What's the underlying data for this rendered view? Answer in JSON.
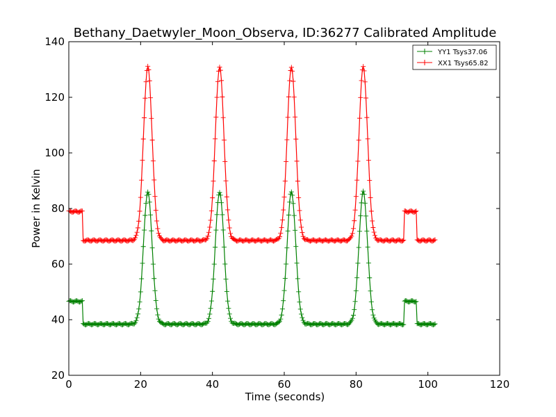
{
  "chart_data": {
    "type": "line",
    "title": "Bethany_Daetwyler_Moon_Observa, ID:36277 Calibrated Amplitude",
    "xlabel": "Time (seconds)",
    "ylabel": "Power in Kelvin",
    "xlim": [
      0,
      120
    ],
    "ylim": [
      20,
      140
    ],
    "x_ticks": [
      0,
      20,
      40,
      60,
      80,
      100,
      120
    ],
    "y_ticks": [
      20,
      40,
      60,
      80,
      100,
      120,
      140
    ],
    "x_tick_labels": [
      "0",
      "20",
      "40",
      "60",
      "80",
      "100",
      "120"
    ],
    "y_tick_labels": [
      "20",
      "40",
      "60",
      "80",
      "100",
      "120",
      "140"
    ],
    "grid": false,
    "legend_position": "top-right",
    "series": [
      {
        "name": "YY1 Tsys37.06",
        "color": "#008000",
        "marker": "+",
        "baseline": 38.4,
        "offset_level": 46.6,
        "peak": 86.0,
        "offset_segments": [
          [
            0,
            4
          ],
          [
            93.5,
            97
          ]
        ],
        "peak_centers": [
          22,
          42,
          62,
          82
        ],
        "peak_sigma": 1.2,
        "x_range": [
          0,
          102
        ]
      },
      {
        "name": "XX1 Tsys65.82",
        "color": "#ff0000",
        "marker": "+",
        "baseline": 68.5,
        "offset_level": 78.9,
        "peak": 131.0,
        "offset_segments": [
          [
            0,
            4
          ],
          [
            93.5,
            97
          ]
        ],
        "peak_centers": [
          22,
          42,
          62,
          82
        ],
        "peak_sigma": 1.2,
        "x_range": [
          0,
          102
        ]
      }
    ]
  }
}
